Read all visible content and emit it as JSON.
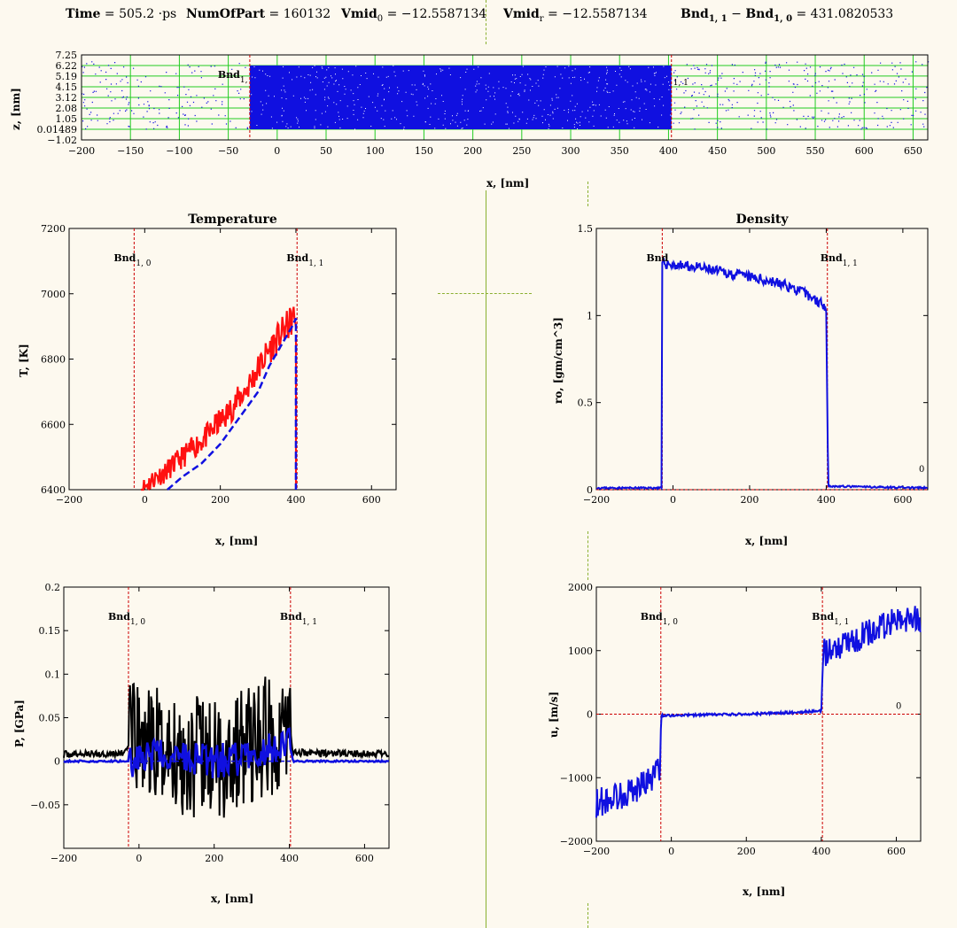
{
  "header": {
    "time_label": "Time",
    "time_value": "= 505.2 ·ps",
    "numpart_label": "NumOfPart",
    "numpart_value": "= 160132",
    "vmid0_label": "Vmid",
    "vmid0_sub": "0",
    "vmid0_value": "= −12.5587134",
    "vmidr_label": "Vmid",
    "vmidr_sub": "r",
    "vmidr_value": "= −12.5587134",
    "bnd_label": "Bnd",
    "bnd_sub1": "1, 1",
    "bnd_minus": "−",
    "bnd_label2": "Bnd",
    "bnd_sub2": "1, 0",
    "bnd_value": "= 431.0820533"
  },
  "bnd_text": {
    "bnd": "Bnd",
    "sub0": "1, 0",
    "sub1": "1, 1",
    "sub0_short": "1,",
    "sub1_short": "1, 1"
  },
  "colors": {
    "background": "#fdf9ef",
    "blue": "#1010e0",
    "red": "#ff1010",
    "black": "#000000",
    "grid_green": "#22cc22",
    "boundary_red": "#cc0000",
    "divider_green": "#8ab030"
  },
  "chart_data": [
    {
      "id": "particles",
      "type": "scatter",
      "title": "",
      "xlabel": "x, [nm]",
      "ylabel": "z, [nm]",
      "xlim": [
        -200,
        665
      ],
      "ylim": [
        -1.02,
        7.25
      ],
      "xticks": [
        -200,
        -150,
        -100,
        -50,
        0,
        50,
        100,
        150,
        200,
        250,
        300,
        350,
        400,
        450,
        500,
        550,
        600,
        650
      ],
      "yticks": [
        "7.25",
        "6.22",
        "5.19",
        "4.15",
        "3.12",
        "2.08",
        "1.05",
        "0.01489",
        "-1.02"
      ],
      "ytick_values": [
        7.25,
        6.22,
        5.19,
        4.15,
        3.12,
        2.08,
        1.05,
        0.01489,
        -1.02
      ],
      "grid": true,
      "dense_region": [
        -28,
        403
      ],
      "z_range": [
        0.01489,
        6.22
      ],
      "boundaries": [
        -28,
        403
      ]
    },
    {
      "id": "temperature",
      "type": "line",
      "title": "Temperature",
      "xlabel": "x, [nm]",
      "ylabel": "T, [K]",
      "xlim": [
        -200,
        665
      ],
      "ylim": [
        6400,
        7200
      ],
      "xticks": [
        -200,
        0,
        200,
        400,
        600
      ],
      "yticks": [
        6400,
        6600,
        6800,
        7000,
        7200
      ],
      "boundaries": [
        -28,
        403
      ],
      "series": [
        {
          "color": "red",
          "style": "solid",
          "x": [
            -10,
            10,
            30,
            50,
            70,
            90,
            110,
            130,
            150,
            170,
            190,
            210,
            230,
            250,
            270,
            290,
            310,
            330,
            350,
            370,
            390,
            400
          ],
          "y": [
            6400,
            6420,
            6440,
            6450,
            6470,
            6490,
            6510,
            6530,
            6550,
            6570,
            6600,
            6620,
            6650,
            6680,
            6710,
            6750,
            6790,
            6830,
            6860,
            6890,
            6920,
            6930
          ]
        },
        {
          "color": "blue",
          "style": "dashed",
          "x": [
            60,
            100,
            150,
            200,
            250,
            300,
            330,
            360,
            390,
            400
          ],
          "y": [
            6400,
            6440,
            6480,
            6540,
            6620,
            6700,
            6780,
            6840,
            6900,
            6925
          ]
        }
      ]
    },
    {
      "id": "density",
      "type": "line",
      "title": "Density",
      "xlabel": "x, [nm]",
      "ylabel": "ro, [gm/cm^3]",
      "xlim": [
        -200,
        665
      ],
      "ylim": [
        0,
        1.5
      ],
      "xticks": [
        -200,
        0,
        200,
        400,
        600
      ],
      "yticks": [
        0,
        0.5,
        1,
        1.5
      ],
      "boundaries": [
        -28,
        403
      ],
      "zero_label": "0",
      "series": [
        {
          "color": "blue",
          "style": "solid",
          "x": [
            -200,
            -30,
            -28,
            -20,
            0,
            50,
            100,
            150,
            200,
            250,
            300,
            350,
            395,
            400,
            405,
            665
          ],
          "y": [
            0.01,
            0.01,
            1.3,
            1.3,
            1.29,
            1.28,
            1.26,
            1.24,
            1.22,
            1.2,
            1.17,
            1.12,
            1.06,
            1.05,
            0.02,
            0.01
          ]
        }
      ]
    },
    {
      "id": "pressure",
      "type": "line",
      "title": "",
      "xlabel": "x, [nm]",
      "ylabel": "P, [GPa]",
      "xlim": [
        -200,
        665
      ],
      "ylim": [
        -0.1,
        0.2
      ],
      "xticks": [
        -200,
        0,
        200,
        400,
        600
      ],
      "yticks": [
        "-0.05",
        "0",
        "0.05",
        "0.1",
        "0.15",
        "0.2"
      ],
      "ytick_values": [
        -0.05,
        0,
        0.05,
        0.1,
        0.15,
        0.2
      ],
      "boundaries": [
        -28,
        403
      ],
      "series": [
        {
          "color": "black",
          "style": "solid",
          "x": [
            -200,
            -40,
            -28,
            0,
            100,
            200,
            300,
            400,
            410,
            665
          ],
          "y": [
            0.008,
            0.009,
            0.02,
            0.02,
            0.01,
            0.0,
            0.02,
            0.04,
            0.01,
            0.008
          ]
        },
        {
          "color": "blue",
          "style": "dashed",
          "x": [
            -200,
            -28,
            0,
            100,
            200,
            300,
            400,
            410,
            665
          ],
          "y": [
            0.0,
            0.0,
            0.005,
            0.005,
            0.0,
            0.005,
            0.02,
            0.0,
            0.0
          ]
        }
      ]
    },
    {
      "id": "velocity",
      "type": "line",
      "title": "",
      "xlabel": "x, [nm]",
      "ylabel": "u, [m/s]",
      "xlim": [
        -200,
        665
      ],
      "ylim": [
        -2000,
        2000
      ],
      "xticks": [
        -200,
        0,
        200,
        400,
        600
      ],
      "yticks": [
        -2000,
        -1000,
        0,
        1000,
        2000
      ],
      "boundaries": [
        -28,
        403
      ],
      "zero_label": "0",
      "series": [
        {
          "color": "blue",
          "style": "solid",
          "x": [
            -200,
            -150,
            -100,
            -50,
            -30,
            -28,
            0,
            100,
            200,
            300,
            400,
            405,
            450,
            500,
            550,
            600,
            665
          ],
          "y": [
            -1400,
            -1300,
            -1200,
            -1000,
            -800,
            -20,
            -20,
            -10,
            0,
            20,
            50,
            950,
            1100,
            1200,
            1350,
            1450,
            1500
          ]
        }
      ]
    }
  ]
}
